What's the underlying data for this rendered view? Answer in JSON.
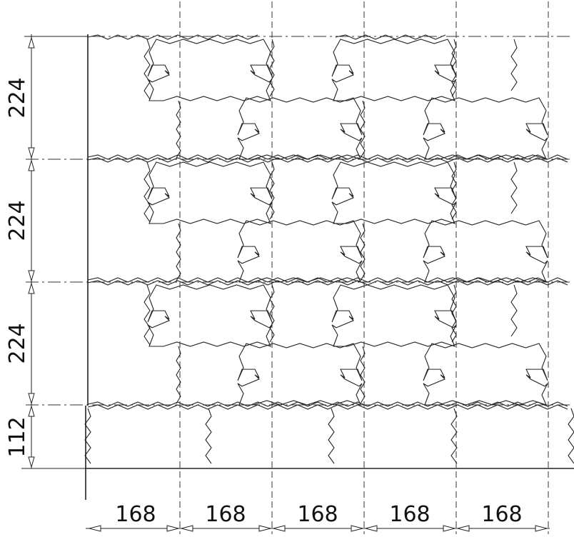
{
  "drawing": {
    "row_dimensions": [
      "224",
      "224",
      "224",
      "112"
    ],
    "col_dimensions": [
      "168",
      "168",
      "168",
      "168",
      "168"
    ]
  }
}
